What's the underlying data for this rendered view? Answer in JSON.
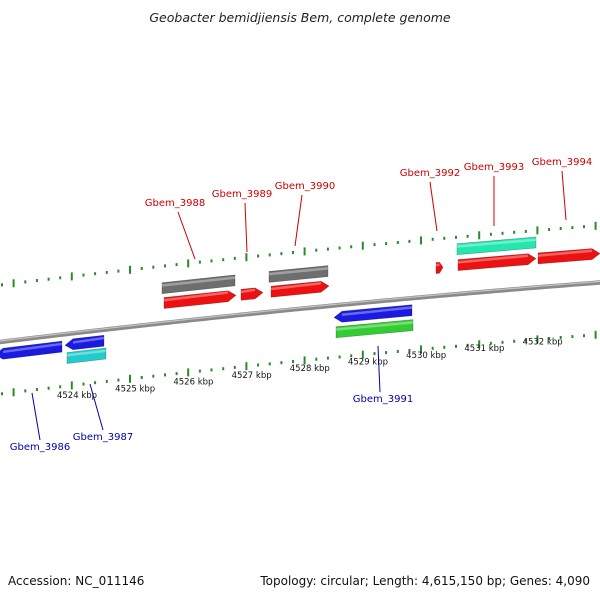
{
  "title": "Geobacter bemidjiensis Bem, complete genome",
  "footer": {
    "accession": "Accession: NC_011146",
    "topology": "Topology: circular; Length: 4,615,150 bp; Genes: 4,090"
  },
  "colors": {
    "red": "#ee1111",
    "gray": "#6e6e6e",
    "blue": "#1a1ae0",
    "green": "#33cc33",
    "cyan": "#22cccc",
    "aqua": "#22e8b0",
    "tick": "#2a8a2a",
    "backbone": "#8a8a8a",
    "label_forward": "#cc0000",
    "label_reverse": "#0000aa"
  },
  "axis": {
    "ticks": [
      "4524 kbp",
      "4525 kbp",
      "4526 kbp",
      "4527 kbp",
      "4528 kbp",
      "4529 kbp",
      "4530 kbp",
      "4531 kbp",
      "4532 kbp"
    ]
  },
  "genes_forward": [
    {
      "id": "Gbem_3988",
      "segments": [
        {
          "color": "gray"
        },
        {
          "color": "red"
        }
      ]
    },
    {
      "id": "Gbem_3989",
      "segments": [
        {
          "color": "red"
        }
      ]
    },
    {
      "id": "Gbem_3990",
      "segments": [
        {
          "color": "gray"
        },
        {
          "color": "red"
        }
      ]
    },
    {
      "id": "Gbem_3992",
      "segments": [
        {
          "color": "red"
        }
      ]
    },
    {
      "id": "Gbem_3993",
      "segments": [
        {
          "color": "aqua"
        },
        {
          "color": "red"
        }
      ]
    },
    {
      "id": "Gbem_3994",
      "segments": [
        {
          "color": "red"
        }
      ]
    }
  ],
  "genes_reverse": [
    {
      "id": "Gbem_3986",
      "segments": [
        {
          "color": "blue"
        }
      ]
    },
    {
      "id": "Gbem_3987",
      "segments": [
        {
          "color": "blue"
        },
        {
          "color": "cyan"
        }
      ]
    },
    {
      "id": "Gbem_3991",
      "segments": [
        {
          "color": "blue"
        },
        {
          "color": "green"
        }
      ]
    }
  ]
}
